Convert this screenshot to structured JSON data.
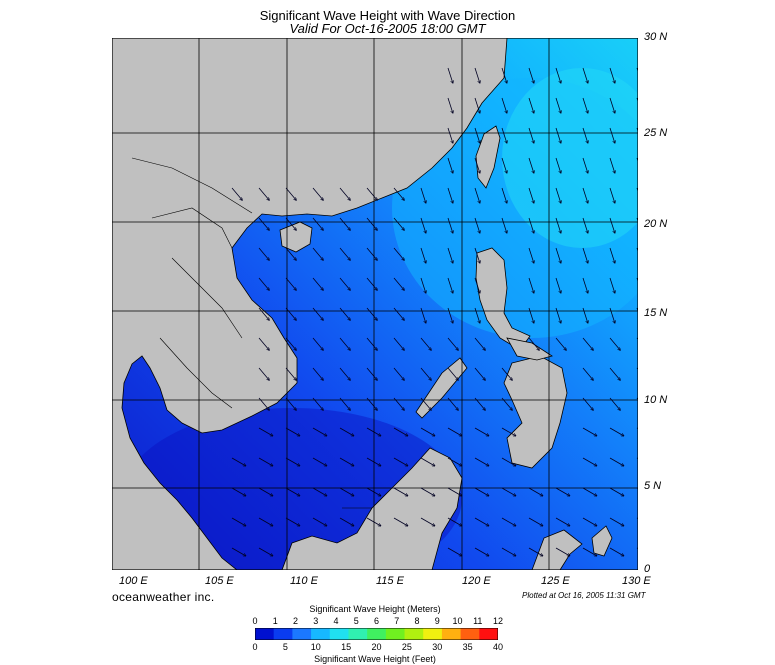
{
  "title": "Significant Wave Height with Wave Direction",
  "subtitle": "Valid For Oct-16-2005 18:00 GMT",
  "credit": "oceanweather inc.",
  "plotted": "Plotted at Oct 16, 2005 11:31 GMT",
  "lat_labels": [
    "30 N",
    "25 N",
    "20 N",
    "15 N",
    "10 N",
    "5 N",
    "0"
  ],
  "lon_labels": [
    "100 E",
    "105 E",
    "110 E",
    "115 E",
    "120 E",
    "125 E",
    "130 E"
  ],
  "legend": {
    "meters_title": "Significant Wave Height (Meters)",
    "feet_title": "Significant Wave Height (Feet)",
    "meters_ticks": [
      "0",
      "1",
      "2",
      "3",
      "4",
      "5",
      "6",
      "7",
      "8",
      "9",
      "10",
      "11",
      "12"
    ],
    "feet_ticks": [
      "0",
      "5",
      "10",
      "15",
      "20",
      "25",
      "30",
      "35",
      "40"
    ],
    "colors": [
      "#0010d0",
      "#0a3cf0",
      "#1b78ff",
      "#17b8ff",
      "#20e0f0",
      "#30f0b0",
      "#40f060",
      "#70f020",
      "#b0f010",
      "#f0f010",
      "#ffb010",
      "#ff6010",
      "#ff1010"
    ]
  },
  "colors": {
    "land": "#c0c0c0",
    "sea_low": "#0d1fd8",
    "sea_mid": "#1358f2",
    "sea_high": "#11a8ff",
    "sea_peak": "#1ed8f8"
  }
}
